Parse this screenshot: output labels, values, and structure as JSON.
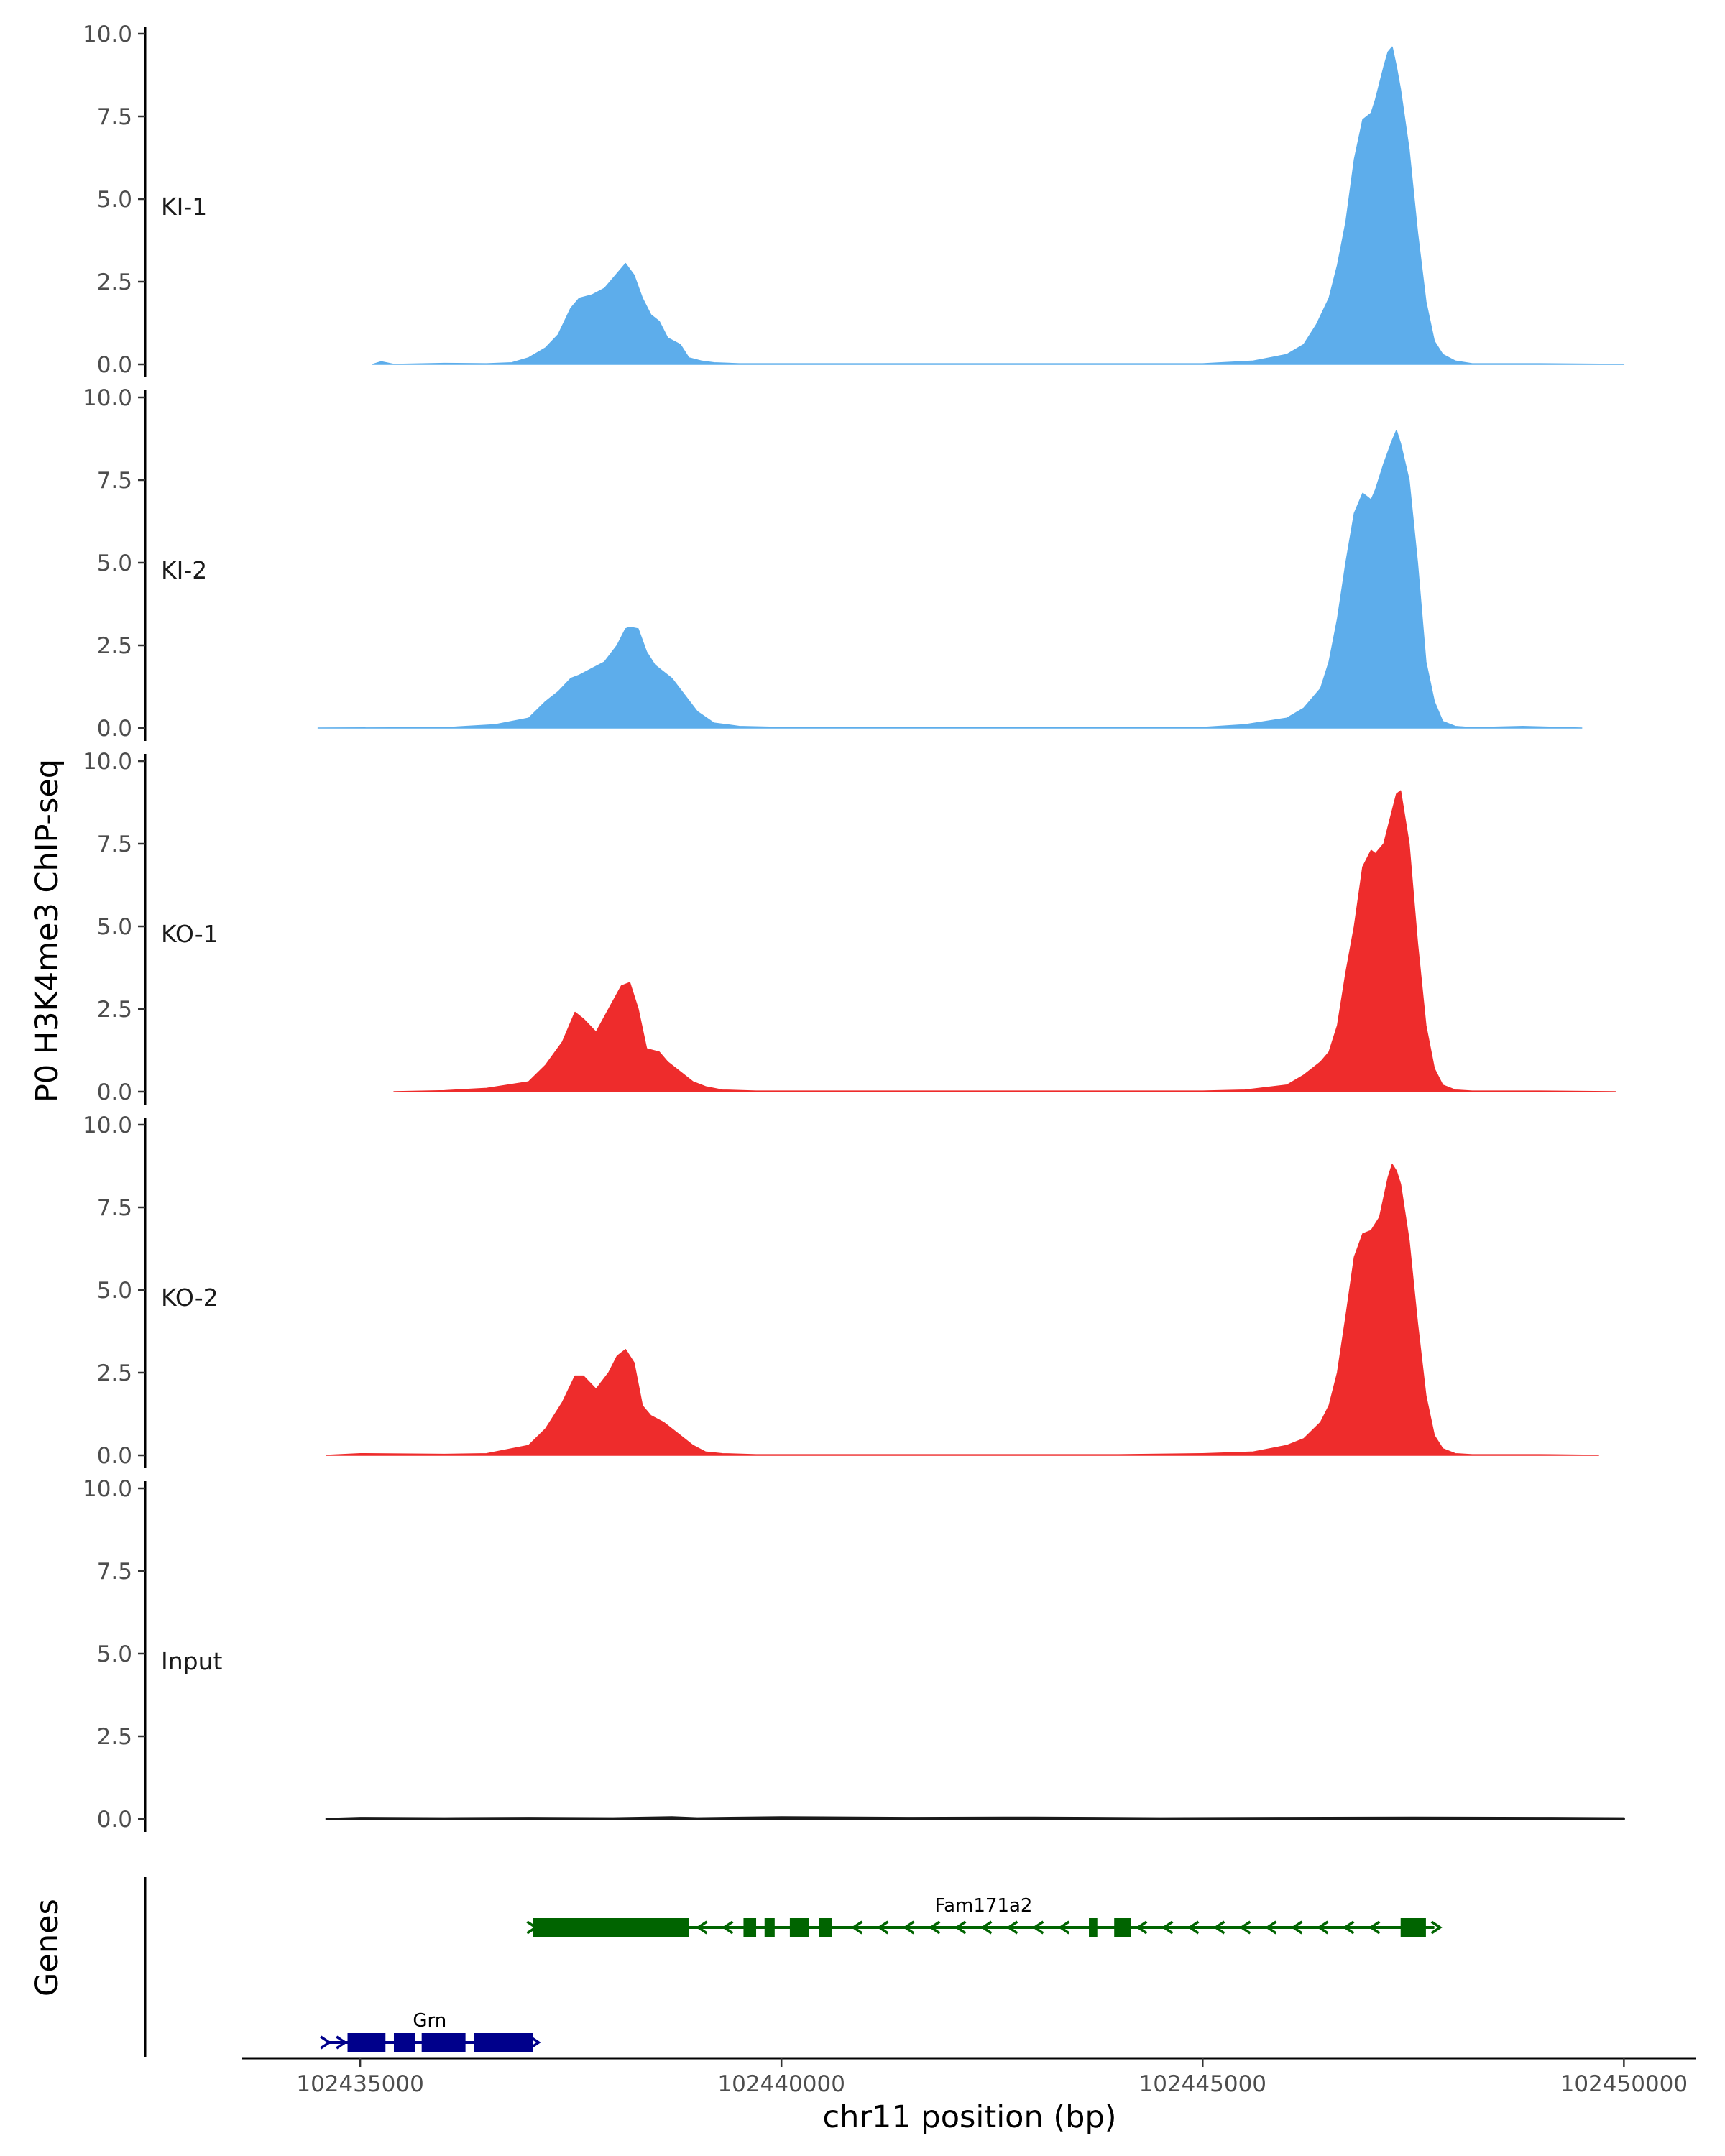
{
  "chart_data": {
    "type": "area",
    "title": "",
    "ylabel": "P0 H3K4me3 ChIP-seq",
    "xlabel": "chr11 position (bp)",
    "genes_label": "Genes",
    "ylim": [
      0,
      10
    ],
    "yticks": [
      0,
      2.5,
      5,
      7.5,
      10
    ],
    "ytick_labels": [
      "0.0",
      "2.5",
      "5.0",
      "7.5",
      "10.0"
    ],
    "xlim": [
      102433600,
      102450850
    ],
    "xticks": [
      102435000,
      102440000,
      102445000,
      102450000
    ],
    "xtick_labels": [
      "102435000",
      "102440000",
      "102445000",
      "102450000"
    ],
    "colors": {
      "KI": "#5DADEB",
      "KO": "#EE2C2C",
      "Input": "#1a1a1a",
      "Fam171a2": "#006400",
      "Grn": "#00008B"
    },
    "tracks": [
      {
        "name": "KI-1",
        "color": "#5DADEB",
        "x": [
          102435150,
          102435250,
          102435400,
          102436000,
          102436500,
          102436800,
          102437000,
          102437200,
          102437350,
          102437500,
          102437600,
          102437750,
          102437900,
          102438000,
          102438100,
          102438150,
          102438250,
          102438350,
          102438450,
          102438550,
          102438650,
          102438800,
          102438900,
          102439050,
          102439200,
          102439500,
          102440000,
          102441000,
          102442000,
          102443000,
          102444000,
          102445000,
          102445600,
          102446000,
          102446200,
          102446350,
          102446500,
          102446600,
          102446700,
          102446800,
          102446900,
          102447000,
          102447050,
          102447150,
          102447200,
          102447250,
          102447300,
          102447350,
          102447450,
          102447550,
          102447650,
          102447750,
          102447850,
          102448000,
          102448200,
          102449000,
          102450000
        ],
        "values": [
          0.0,
          0.08,
          0.0,
          0.03,
          0.02,
          0.05,
          0.2,
          0.5,
          0.9,
          1.7,
          2.0,
          2.1,
          2.3,
          2.6,
          2.9,
          3.05,
          2.7,
          2.0,
          1.5,
          1.3,
          0.8,
          0.6,
          0.2,
          0.1,
          0.05,
          0.02,
          0.02,
          0.02,
          0.02,
          0.02,
          0.02,
          0.02,
          0.1,
          0.3,
          0.6,
          1.2,
          2.0,
          3.0,
          4.3,
          6.2,
          7.4,
          7.6,
          8.0,
          9.0,
          9.45,
          9.6,
          9.0,
          8.3,
          6.5,
          4.0,
          1.9,
          0.7,
          0.3,
          0.1,
          0.02,
          0.02,
          0.0
        ]
      },
      {
        "name": "KI-2",
        "color": "#5DADEB",
        "x": [
          102434500,
          102436000,
          102436600,
          102437000,
          102437200,
          102437350,
          102437500,
          102437600,
          102437750,
          102437900,
          102438050,
          102438150,
          102438200,
          102438300,
          102438400,
          102438500,
          102438700,
          102438850,
          102439000,
          102439200,
          102439500,
          102440000,
          102442000,
          102444000,
          102445000,
          102445500,
          102446000,
          102446200,
          102446400,
          102446500,
          102446600,
          102446700,
          102446800,
          102446900,
          102447000,
          102447050,
          102447150,
          102447250,
          102447300,
          102447350,
          102447450,
          102447550,
          102447650,
          102447750,
          102447850,
          102448000,
          102448200,
          102448800,
          102449500
        ],
        "values": [
          0.0,
          0.01,
          0.1,
          0.3,
          0.8,
          1.1,
          1.5,
          1.6,
          1.8,
          2.0,
          2.5,
          3.0,
          3.05,
          3.0,
          2.3,
          1.9,
          1.5,
          1.0,
          0.5,
          0.15,
          0.05,
          0.02,
          0.02,
          0.02,
          0.02,
          0.1,
          0.3,
          0.6,
          1.2,
          2.0,
          3.3,
          5.0,
          6.5,
          7.1,
          6.9,
          7.2,
          8.0,
          8.7,
          9.0,
          8.6,
          7.5,
          5.0,
          2.0,
          0.8,
          0.2,
          0.05,
          0.01,
          0.05,
          0.0
        ]
      },
      {
        "name": "KO-1",
        "color": "#EE2C2C",
        "x": [
          102435400,
          102436000,
          102436500,
          102437000,
          102437200,
          102437400,
          102437550,
          102437650,
          102437800,
          102437950,
          102438100,
          102438200,
          102438300,
          102438400,
          102438550,
          102438650,
          102438800,
          102438950,
          102439100,
          102439300,
          102439700,
          102440500,
          102441500,
          102442500,
          102443500,
          102444500,
          102445000,
          102445500,
          102446000,
          102446200,
          102446400,
          102446500,
          102446600,
          102446700,
          102446800,
          102446900,
          102447000,
          102447050,
          102447150,
          102447250,
          102447300,
          102447350,
          102447450,
          102447550,
          102447650,
          102447750,
          102447850,
          102448000,
          102448200,
          102449000,
          102449900
        ],
        "values": [
          0.0,
          0.03,
          0.1,
          0.3,
          0.8,
          1.5,
          2.4,
          2.2,
          1.8,
          2.5,
          3.2,
          3.3,
          2.5,
          1.3,
          1.2,
          0.9,
          0.6,
          0.3,
          0.15,
          0.05,
          0.02,
          0.02,
          0.02,
          0.02,
          0.02,
          0.02,
          0.02,
          0.05,
          0.2,
          0.5,
          0.9,
          1.2,
          2.0,
          3.6,
          5.0,
          6.8,
          7.3,
          7.2,
          7.5,
          8.5,
          9.0,
          9.1,
          7.5,
          4.5,
          2.0,
          0.7,
          0.2,
          0.05,
          0.02,
          0.02,
          0.0
        ]
      },
      {
        "name": "KO-2",
        "color": "#EE2C2C",
        "x": [
          102434600,
          102435000,
          102436000,
          102436500,
          102437000,
          102437200,
          102437400,
          102437550,
          102437650,
          102437800,
          102437950,
          102438050,
          102438150,
          102438250,
          102438350,
          102438450,
          102438600,
          102438800,
          102438950,
          102439100,
          102439300,
          102439700,
          102440500,
          102442000,
          102444000,
          102445000,
          102445600,
          102446000,
          102446200,
          102446400,
          102446500,
          102446600,
          102446700,
          102446800,
          102446900,
          102447000,
          102447100,
          102447200,
          102447250,
          102447300,
          102447350,
          102447450,
          102447550,
          102447650,
          102447750,
          102447850,
          102448000,
          102448200,
          102449000,
          102449700
        ],
        "values": [
          0.0,
          0.05,
          0.03,
          0.05,
          0.3,
          0.8,
          1.6,
          2.4,
          2.4,
          2.0,
          2.5,
          3.0,
          3.2,
          2.8,
          1.5,
          1.2,
          1.0,
          0.6,
          0.3,
          0.1,
          0.05,
          0.02,
          0.02,
          0.02,
          0.02,
          0.05,
          0.1,
          0.3,
          0.5,
          1.0,
          1.5,
          2.5,
          4.2,
          6.0,
          6.7,
          6.8,
          7.2,
          8.4,
          8.8,
          8.6,
          8.2,
          6.5,
          4.0,
          1.8,
          0.6,
          0.2,
          0.05,
          0.02,
          0.02,
          0.0
        ]
      },
      {
        "name": "Input",
        "color": "#1a1a1a",
        "x": [
          102434600,
          102435000,
          102436000,
          102437000,
          102438000,
          102438700,
          102439000,
          102440000,
          102441500,
          102443000,
          102444500,
          102446000,
          102447500,
          102449000,
          102450000
        ],
        "values": [
          0.0,
          0.03,
          0.02,
          0.03,
          0.02,
          0.05,
          0.02,
          0.05,
          0.03,
          0.04,
          0.02,
          0.03,
          0.04,
          0.03,
          0.02
        ]
      }
    ],
    "genes": [
      {
        "name": "Fam171a2",
        "strand": "-",
        "color": "#006400",
        "row": 1,
        "start": 102437050,
        "end": 102447750,
        "exons": [
          [
            102437050,
            102438900
          ],
          [
            102439550,
            102439700
          ],
          [
            102439800,
            102439920
          ],
          [
            102440100,
            102440330
          ],
          [
            102440450,
            102440600
          ],
          [
            102443650,
            102443750
          ],
          [
            102443950,
            102444150
          ],
          [
            102447350,
            102447650
          ]
        ]
      },
      {
        "name": "Grn",
        "strand": "+",
        "color": "#00008B",
        "row": 2,
        "start": 102434600,
        "end": 102437050,
        "exons": [
          [
            102434850,
            102435300
          ],
          [
            102435400,
            102435650
          ],
          [
            102435730,
            102436250
          ],
          [
            102436350,
            102437050
          ]
        ]
      }
    ]
  }
}
